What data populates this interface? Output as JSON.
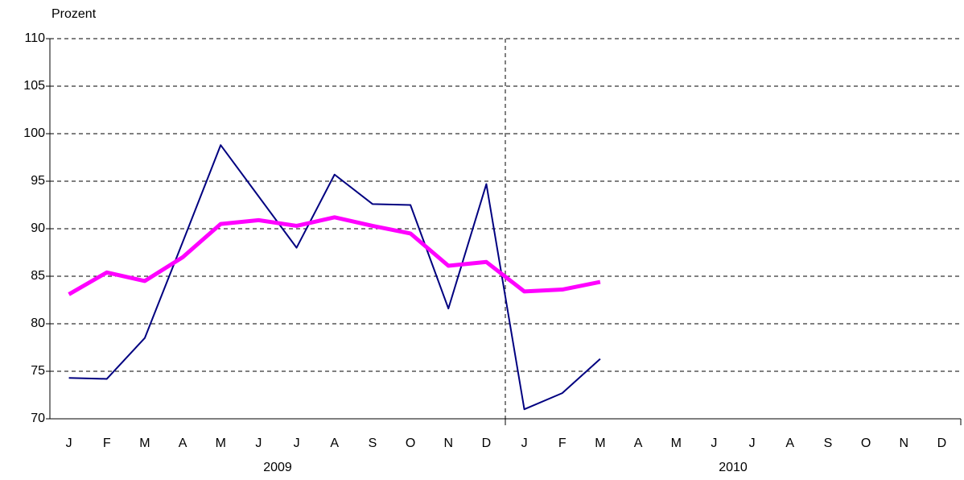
{
  "chart_data": {
    "type": "line",
    "y_label": "Prozent",
    "categories": [
      "J",
      "F",
      "M",
      "A",
      "M",
      "J",
      "J",
      "A",
      "S",
      "O",
      "N",
      "D",
      "J",
      "F",
      "M",
      "A",
      "M",
      "J",
      "J",
      "A",
      "S",
      "O",
      "N",
      "D"
    ],
    "groups": [
      "2009",
      "2010"
    ],
    "series": [
      {
        "color": "#000080",
        "width": 2,
        "values": [
          74.3,
          74.2,
          78.5,
          88.6,
          98.8,
          93.4,
          88.0,
          95.7,
          92.6,
          92.5,
          81.6,
          94.7,
          71.0,
          72.7,
          76.3,
          null,
          null,
          null,
          null,
          null,
          null,
          null,
          null,
          null
        ]
      },
      {
        "color": "#ff00ff",
        "width": 5,
        "values": [
          83.1,
          85.4,
          84.5,
          87.0,
          90.5,
          90.9,
          90.3,
          91.2,
          90.3,
          89.5,
          86.1,
          86.5,
          83.4,
          83.6,
          84.4,
          null,
          null,
          null,
          null,
          null,
          null,
          null,
          null,
          null
        ]
      }
    ],
    "ylim": [
      70,
      110
    ],
    "yticks": [
      70,
      75,
      80,
      85,
      90,
      95,
      100,
      105,
      110
    ],
    "grid": true
  }
}
